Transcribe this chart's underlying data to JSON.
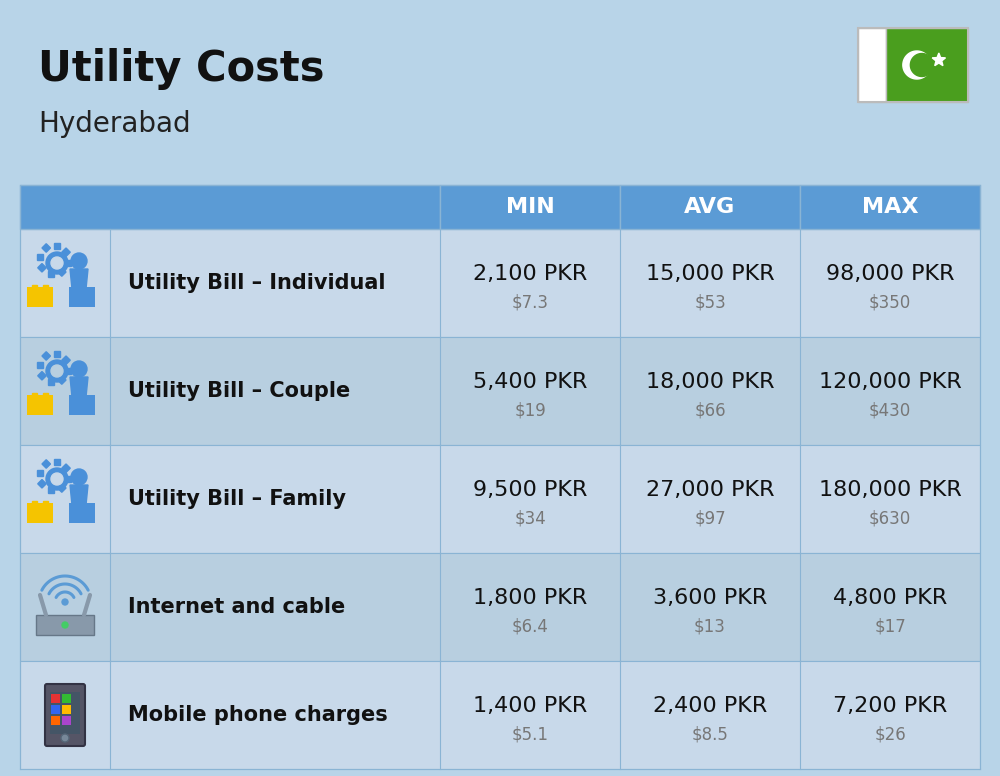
{
  "title": "Utility Costs",
  "subtitle": "Hyderabad",
  "bg_color": "#b8d4e8",
  "header_color": "#5b9bd5",
  "header_text_color": "#ffffff",
  "row_colors": [
    "#c8d9ea",
    "#b8cfe0"
  ],
  "border_color": "#8ab4d4",
  "col_headers": [
    "MIN",
    "AVG",
    "MAX"
  ],
  "rows": [
    {
      "label": "Utility Bill – Individual",
      "min_pkr": "2,100 PKR",
      "min_usd": "$7.3",
      "avg_pkr": "15,000 PKR",
      "avg_usd": "$53",
      "max_pkr": "98,000 PKR",
      "max_usd": "$350",
      "icon": "utility"
    },
    {
      "label": "Utility Bill – Couple",
      "min_pkr": "5,400 PKR",
      "min_usd": "$19",
      "avg_pkr": "18,000 PKR",
      "avg_usd": "$66",
      "max_pkr": "120,000 PKR",
      "max_usd": "$430",
      "icon": "utility"
    },
    {
      "label": "Utility Bill – Family",
      "min_pkr": "9,500 PKR",
      "min_usd": "$34",
      "avg_pkr": "27,000 PKR",
      "avg_usd": "$97",
      "max_pkr": "180,000 PKR",
      "max_usd": "$630",
      "icon": "utility"
    },
    {
      "label": "Internet and cable",
      "min_pkr": "1,800 PKR",
      "min_usd": "$6.4",
      "avg_pkr": "3,600 PKR",
      "avg_usd": "$13",
      "max_pkr": "4,800 PKR",
      "max_usd": "$17",
      "icon": "internet"
    },
    {
      "label": "Mobile phone charges",
      "min_pkr": "1,400 PKR",
      "min_usd": "$5.1",
      "avg_pkr": "2,400 PKR",
      "avg_usd": "$8.5",
      "max_pkr": "7,200 PKR",
      "max_usd": "$26",
      "icon": "mobile"
    }
  ],
  "flag_green": "#4a9e1e",
  "flag_white": "#ffffff",
  "title_fontsize": 30,
  "subtitle_fontsize": 20,
  "label_fontsize": 15,
  "value_fontsize": 16,
  "usd_fontsize": 12,
  "header_fontsize": 16
}
